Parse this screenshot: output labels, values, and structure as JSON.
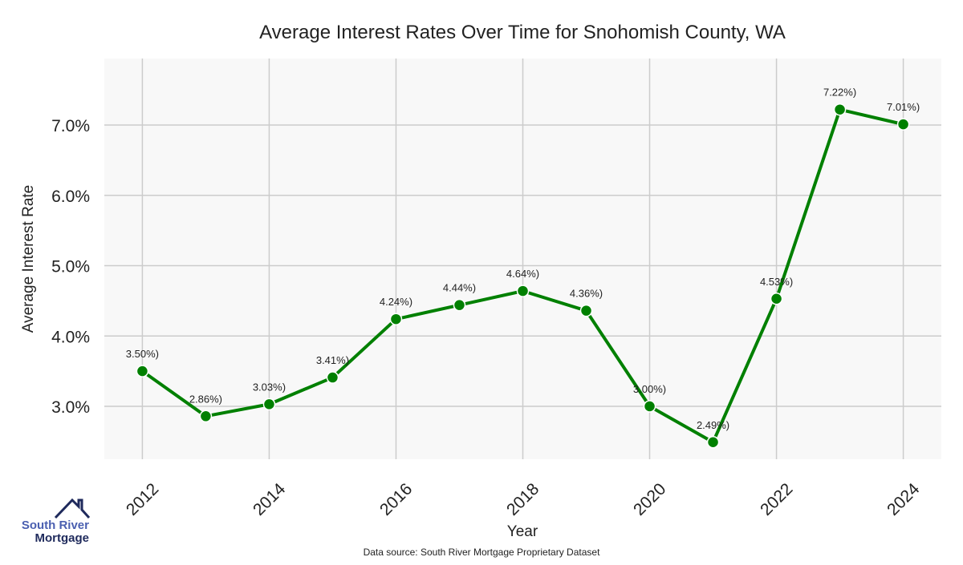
{
  "chart_data": {
    "type": "line",
    "title": "Average Interest Rates Over Time for Snohomish County, WA",
    "xlabel": "Year",
    "ylabel": "Average Interest Rate",
    "x": [
      2012,
      2013,
      2014,
      2015,
      2016,
      2017,
      2018,
      2019,
      2020,
      2021,
      2022,
      2023,
      2024
    ],
    "values": [
      3.5,
      2.86,
      3.03,
      3.41,
      4.24,
      4.44,
      4.64,
      4.36,
      3.0,
      2.49,
      4.53,
      7.22,
      7.01
    ],
    "data_labels": [
      "3.50%)",
      "2.86%)",
      "3.03%)",
      "3.41%)",
      "4.24%)",
      "4.44%)",
      "4.64%)",
      "4.36%)",
      "3.00%)",
      "2.49%)",
      "4.53%)",
      "7.22%)",
      "7.01%)"
    ],
    "xticks": [
      "2012",
      "2014",
      "2016",
      "2018",
      "2020",
      "2022",
      "2024"
    ],
    "xtick_values": [
      2012,
      2014,
      2016,
      2018,
      2020,
      2022,
      2024
    ],
    "yticks": [
      "3.0%",
      "4.0%",
      "5.0%",
      "6.0%",
      "7.0%"
    ],
    "ytick_values": [
      3,
      4,
      5,
      6,
      7
    ],
    "xlim": [
      2011.4,
      2024.6
    ],
    "ylim": [
      2.248,
      7.946
    ],
    "grid": true,
    "line_color": "#008000",
    "plot_bg": "#f8f8f8",
    "grid_color": "#cccccc"
  },
  "footer": {
    "source": "Data source: South River Mortgage Proprietary Dataset"
  },
  "logo": {
    "line1": "South River",
    "line2": "Mortgage",
    "color1": "#4a5fb0",
    "color2": "#1f2a5c"
  }
}
